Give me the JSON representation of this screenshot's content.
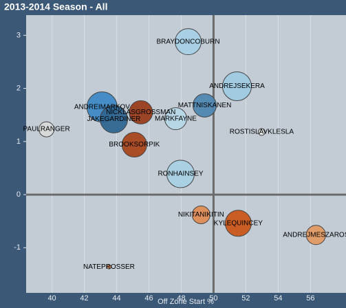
{
  "chart_data": {
    "type": "bubble",
    "title": "2013-2014 Season - All",
    "x_label": "Off Zone Start %",
    "labels": [
      "BRAYDONCOBURN",
      "ANDREJSEKERA",
      "MATTNISKANEN",
      "ANDREIMARKOV",
      "NICKLASGROSSMAN",
      "JAKEGARDINER",
      "MARKFAYNE",
      "PAULRANGER",
      "ROSTISLAVKLESLA",
      "BROOKSORPIK",
      "RONHAINSEY",
      "NIKITANIKITIN",
      "KYLEQUINCEY",
      "ANDREJMESZAROS",
      "NATEPROSSER"
    ],
    "x": [
      48.43,
      51.45,
      49.45,
      43.1,
      45.5,
      43.83,
      47.66,
      39.66,
      52.98,
      45.1,
      47.96,
      49.23,
      51.53,
      56.34,
      43.53
    ],
    "y": [
      2.88,
      2.04,
      1.68,
      1.65,
      1.55,
      1.42,
      1.43,
      1.23,
      1.18,
      0.94,
      0.39,
      -0.38,
      -0.54,
      -0.76,
      -1.36
    ],
    "size": [
      19,
      21,
      17,
      22,
      17,
      20,
      16,
      11,
      5,
      18,
      20,
      13,
      19,
      14,
      3
    ],
    "colors": [
      "#a7cfe4",
      "#9ecae1",
      "#4f86b0",
      "#3f88c5",
      "#9a3d1c",
      "#2f6590",
      "#b7d7e7",
      "#d9d9d9",
      "#e3e3e3",
      "#a8461e",
      "#a9d0e4",
      "#de8c55",
      "#c9561a",
      "#e29a63",
      "#e08a50"
    ],
    "xlim": [
      38.4,
      58.2
    ],
    "ylim": [
      -1.85,
      3.38
    ],
    "xticks": [
      40,
      42,
      44,
      46,
      48,
      50,
      52,
      54,
      56
    ],
    "yticks": [
      -1,
      0,
      1,
      2,
      3
    ],
    "crosshair": {
      "x": 50,
      "y": 0
    }
  }
}
